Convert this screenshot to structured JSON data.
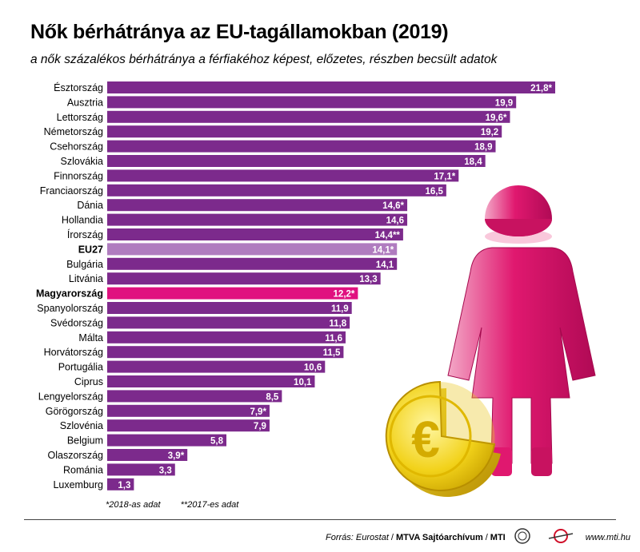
{
  "header": {
    "title": "Nők bérhátránya az EU-tagállamokban (2019)",
    "subtitle": "a nők százalékos bérhátránya a férfiakéhoz képest, előzetes, részben becsült adatok"
  },
  "chart_data": {
    "type": "bar",
    "orientation": "horizontal",
    "categories": [
      "Észtország",
      "Ausztria",
      "Lettország",
      "Németország",
      "Csehország",
      "Szlovákia",
      "Finnország",
      "Franciaország",
      "Dánia",
      "Hollandia",
      "Írország",
      "EU27",
      "Bulgária",
      "Litvánia",
      "Magyarország",
      "Spanyolország",
      "Svédország",
      "Málta",
      "Horvátország",
      "Portugália",
      "Ciprus",
      "Lengyelország",
      "Görögország",
      "Szlovénia",
      "Belgium",
      "Olaszország",
      "Románia",
      "Luxemburg"
    ],
    "values": [
      21.8,
      19.9,
      19.6,
      19.2,
      18.9,
      18.4,
      17.1,
      16.5,
      14.6,
      14.6,
      14.4,
      14.1,
      14.1,
      13.3,
      12.2,
      11.9,
      11.8,
      11.6,
      11.5,
      10.6,
      10.1,
      8.5,
      7.9,
      7.9,
      5.8,
      3.9,
      3.3,
      1.3
    ],
    "value_labels": [
      "21,8*",
      "19,9",
      "19,6*",
      "19,2",
      "18,9",
      "18,4",
      "17,1*",
      "16,5",
      "14,6*",
      "14,6",
      "14,4**",
      "14,1*",
      "14,1",
      "13,3",
      "12,2*",
      "11,9",
      "11,8",
      "11,6",
      "11,5",
      "10,6",
      "10,1",
      "8,5",
      "7,9*",
      "7,9",
      "5,8",
      "3,9*",
      "3,3",
      "1,3"
    ],
    "highlight": {
      "EU27": "#b07cbf",
      "Magyarország": "#e0117f"
    },
    "bold_categories": [
      "EU27",
      "Magyarország"
    ],
    "bar_color": "#7c2a8c",
    "title": "Nők bérhátránya az EU-tagállamokban (2019)",
    "xlabel": "",
    "ylabel": "",
    "xlim": [
      0,
      21.8
    ],
    "grid": false,
    "legend": "none"
  },
  "notes": [
    "*2018-as adat",
    "**2017-es adat"
  ],
  "footer": {
    "source_label": "Forrás:",
    "source_text": "Eurostat",
    "archive": "MTVA Sajtóarchívum",
    "agency": "MTI",
    "site": "www.mti.hu"
  },
  "illustration": {
    "icons": [
      "woman-figure-icon",
      "euro-coin-icon"
    ],
    "colors": {
      "figure": "#e0186f",
      "coin": "#f2d21a"
    }
  }
}
